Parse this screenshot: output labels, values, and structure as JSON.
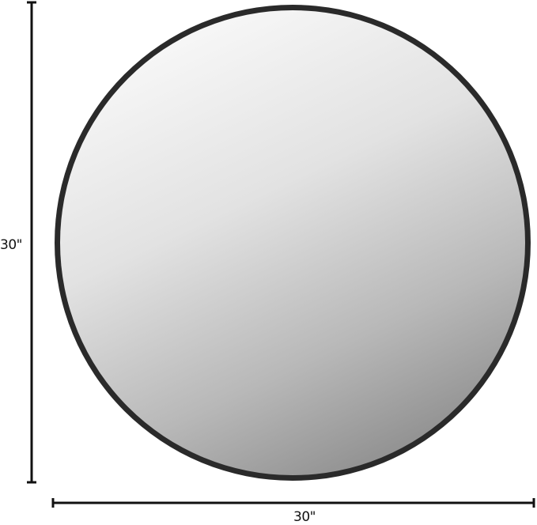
{
  "dimensions": {
    "height_label": "30\"",
    "width_label": "30\""
  },
  "colors": {
    "frame": "#2a2a2a",
    "glass_light": "#f4f4f4",
    "glass_dark": "#8e8e8e",
    "dimension_line": "#111111"
  }
}
